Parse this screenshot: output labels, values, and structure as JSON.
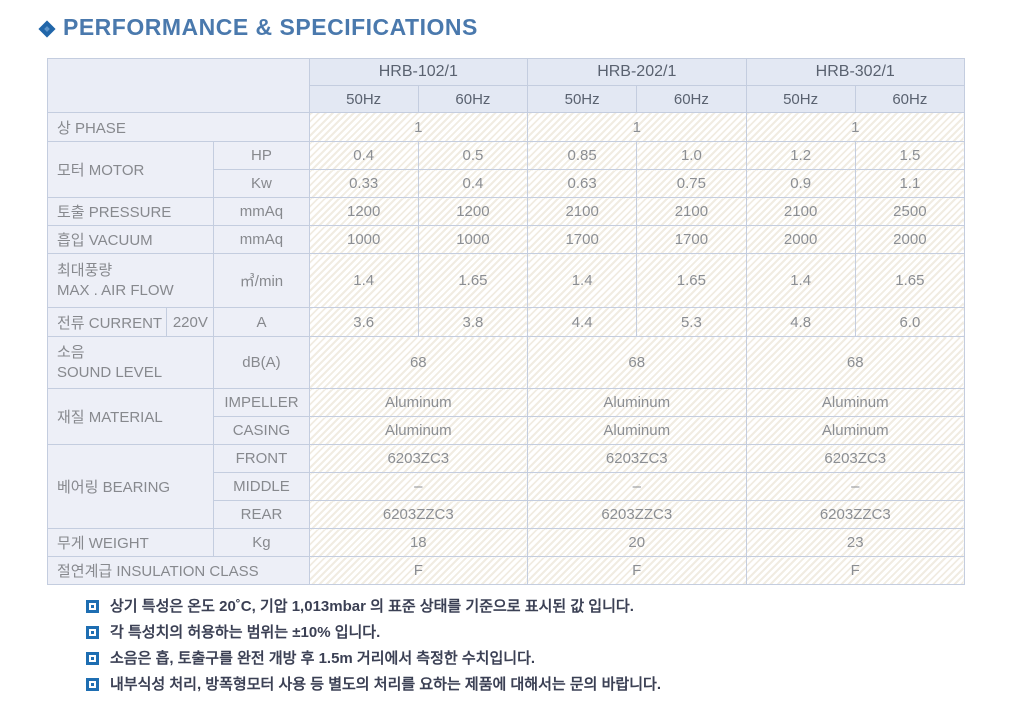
{
  "title": {
    "icon": "diamond-icon",
    "text": "PERFORMANCE & SPECIFICATIONS"
  },
  "colors": {
    "title_blue": "#4a79ad",
    "icon_blue": "#2166a9",
    "bullet_blue": "#1e6eb2",
    "note_text": "#3b4054",
    "header_bg": "#e3e8f3",
    "label_bg": "#edeff7",
    "border": "#c4cddf",
    "hatch_stripe": "#f1ece2"
  },
  "table": {
    "models": [
      "HRB-102/1",
      "HRB-202/1",
      "HRB-302/1"
    ],
    "freqs": [
      "50Hz",
      "60Hz",
      "50Hz",
      "60Hz",
      "50Hz",
      "60Hz"
    ],
    "phase": {
      "label": "상 PHASE",
      "values": [
        "1",
        "1",
        "1"
      ]
    },
    "motor": {
      "label": "모터 MOTOR",
      "hp": {
        "unit": "HP",
        "values": [
          "0.4",
          "0.5",
          "0.85",
          "1.0",
          "1.2",
          "1.5"
        ]
      },
      "kw": {
        "unit": "Kw",
        "values": [
          "0.33",
          "0.4",
          "0.63",
          "0.75",
          "0.9",
          "1.1"
        ]
      }
    },
    "pressure": {
      "label": "토출 PRESSURE",
      "unit": "mmAq",
      "values": [
        "1200",
        "1200",
        "2100",
        "2100",
        "2100",
        "2500"
      ]
    },
    "vacuum": {
      "label": "흡입 VACUUM",
      "unit": "mmAq",
      "values": [
        "1000",
        "1000",
        "1700",
        "1700",
        "2000",
        "2000"
      ]
    },
    "airflow": {
      "label_ko": "최대풍량",
      "label_en": "MAX . AIR FLOW",
      "unit": "㎥/min",
      "values": [
        "1.4",
        "1.65",
        "1.4",
        "1.65",
        "1.4",
        "1.65"
      ]
    },
    "current": {
      "label": "전류 CURRENT",
      "voltage": "220V",
      "unit": "A",
      "values": [
        "3.6",
        "3.8",
        "4.4",
        "5.3",
        "4.8",
        "6.0"
      ]
    },
    "sound": {
      "label_ko": "소음",
      "label_en": "SOUND LEVEL",
      "unit": "dB(A)",
      "values": [
        "68",
        "68",
        "68"
      ]
    },
    "material": {
      "label": "재질 MATERIAL",
      "impeller": {
        "unit": "IMPELLER",
        "values": [
          "Aluminum",
          "Aluminum",
          "Aluminum"
        ]
      },
      "casing": {
        "unit": "CASING",
        "values": [
          "Aluminum",
          "Aluminum",
          "Aluminum"
        ]
      }
    },
    "bearing": {
      "label": "베어링 BEARING",
      "front": {
        "unit": "FRONT",
        "values": [
          "6203ZC3",
          "6203ZC3",
          "6203ZC3"
        ]
      },
      "middle": {
        "unit": "MIDDLE",
        "values": [
          "–",
          "–",
          "–"
        ]
      },
      "rear": {
        "unit": "REAR",
        "values": [
          "6203ZZC3",
          "6203ZZC3",
          "6203ZZC3"
        ]
      }
    },
    "weight": {
      "label": "무게 WEIGHT",
      "unit": "Kg",
      "values": [
        "18",
        "20",
        "23"
      ]
    },
    "insulation": {
      "label": "절연계급 INSULATION CLASS",
      "values": [
        "F",
        "F",
        "F"
      ]
    }
  },
  "notes": [
    "상기 특성은 온도 20˚C, 기압 1,013mbar 의 표준 상태를 기준으로 표시된 값 입니다.",
    "각 특성치의 허용하는 범위는 ±10% 입니다.",
    "소음은 흡, 토출구를 완전 개방 후 1.5m 거리에서 측정한 수치입니다.",
    "내부식성 처리, 방폭형모터 사용 등 별도의 처리를 요하는 제품에 대해서는 문의 바랍니다."
  ]
}
